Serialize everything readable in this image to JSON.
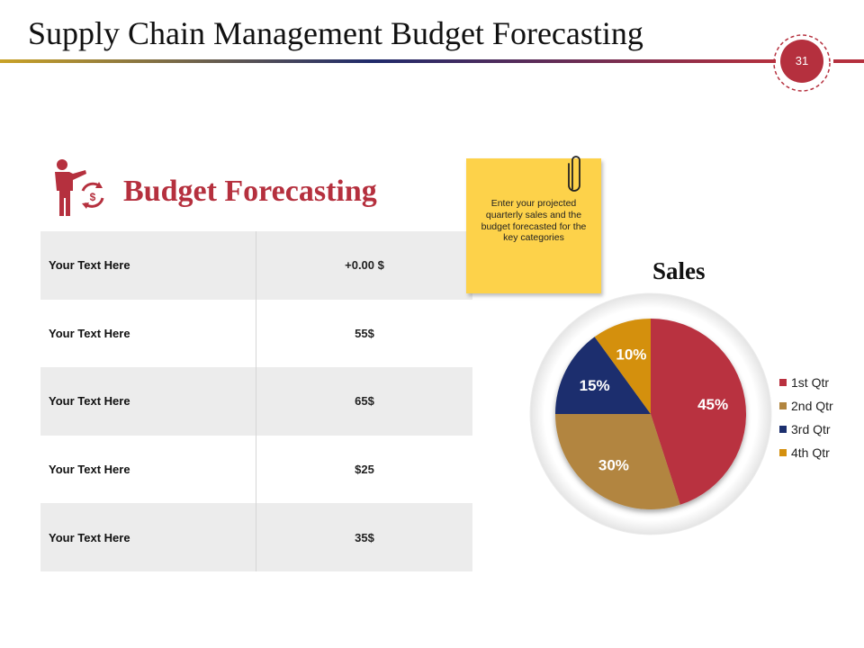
{
  "header": {
    "title": "Supply Chain Management Budget Forecasting",
    "page_number": "31"
  },
  "section": {
    "title": "Budget Forecasting",
    "icon": "presenter-budget-cycle-icon"
  },
  "table": {
    "rows": [
      {
        "label": "Your Text Here",
        "value": "+0.00 $"
      },
      {
        "label": "Your Text Here",
        "value": "55$"
      },
      {
        "label": "Your Text Here",
        "value": "65$"
      },
      {
        "label": "Your Text Here",
        "value": "$25"
      },
      {
        "label": "Your Text Here",
        "value": "35$"
      }
    ]
  },
  "note": {
    "text": "Enter your projected quarterly sales and the budget forecasted for the key categories"
  },
  "colors": {
    "accent_red": "#b5303e",
    "gold": "#c9a227",
    "navy": "#1f2a6b"
  },
  "chart_data": {
    "type": "pie",
    "title": "Sales",
    "categories": [
      "1st Qtr",
      "2nd Qtr",
      "3rd Qtr",
      "4th Qtr"
    ],
    "values": [
      45,
      30,
      15,
      10
    ],
    "labels": [
      "45%",
      "30%",
      "15%",
      "10%"
    ],
    "colors": [
      "#b9303f",
      "#b2853f",
      "#1c2f6e",
      "#d4900f"
    ],
    "legend_position": "right"
  }
}
